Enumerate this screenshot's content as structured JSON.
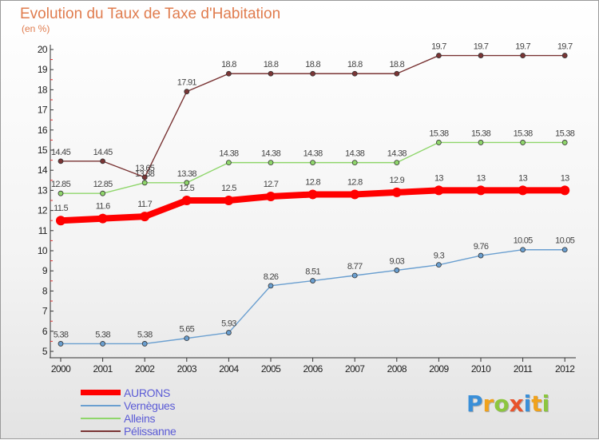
{
  "title": "Evolution du Taux de Taxe d'Habitation",
  "subtitle": "(en %)",
  "chart_data": {
    "type": "line",
    "title": "Evolution du Taux de Taxe d'Habitation",
    "ylabel": "(en %)",
    "xlabel": "",
    "ylim": [
      5,
      20
    ],
    "grid": false,
    "legend_position": "bottom-left",
    "x": [
      "2000",
      "2001",
      "2002",
      "2003",
      "2004",
      "2005",
      "2006",
      "2007",
      "2008",
      "2009",
      "2010",
      "2011",
      "2012"
    ],
    "y_ticks": [
      "5",
      "6",
      "7",
      "8",
      "9",
      "10",
      "11",
      "12",
      "13",
      "14",
      "15",
      "16",
      "17",
      "18",
      "19",
      "20"
    ],
    "series": [
      {
        "name": "AURONS",
        "color": "#ff0000",
        "values": [
          11.5,
          11.6,
          11.7,
          12.5,
          12.5,
          12.7,
          12.8,
          12.8,
          12.9,
          13,
          13,
          13,
          13
        ],
        "labels": [
          "11.5",
          "11.6",
          "11.7",
          "12.5",
          "12.5",
          "12.7",
          "12.8",
          "12.8",
          "12.9",
          "13",
          "13",
          "13",
          "13"
        ]
      },
      {
        "name": "Vernègues",
        "color": "#6a9fd0",
        "values": [
          5.38,
          5.38,
          5.38,
          5.65,
          5.93,
          8.26,
          8.51,
          8.77,
          9.03,
          9.3,
          9.76,
          10.05,
          10.05
        ],
        "labels": [
          "5.38",
          "5.38",
          "5.38",
          "5.65",
          "5.93",
          "8.26",
          "8.51",
          "8.77",
          "9.03",
          "9.3",
          "9.76",
          "10.05",
          "10.05"
        ]
      },
      {
        "name": "Alleins",
        "color": "#8fd66b",
        "values": [
          12.85,
          12.85,
          13.38,
          13.38,
          14.38,
          14.38,
          14.38,
          14.38,
          14.38,
          15.38,
          15.38,
          15.38,
          15.38
        ],
        "labels": [
          "12.85",
          "12.85",
          "13.38",
          "13.38",
          "14.38",
          "14.38",
          "14.38",
          "14.38",
          "14.38",
          "15.38",
          "15.38",
          "15.38",
          "15.38"
        ]
      },
      {
        "name": "Pélissanne",
        "color": "#7a3535",
        "values": [
          14.45,
          14.45,
          13.65,
          17.91,
          18.8,
          18.8,
          18.8,
          18.8,
          18.8,
          19.7,
          19.7,
          19.7,
          19.7
        ],
        "labels": [
          "14.45",
          "14.45",
          "13.65",
          "17.91",
          "18.8",
          "18.8",
          "18.8",
          "18.8",
          "18.8",
          "19.7",
          "19.7",
          "19.7",
          "19.7"
        ]
      }
    ]
  },
  "logo": {
    "letters": [
      "P",
      "r",
      "o",
      "x",
      "i",
      "t",
      "i"
    ],
    "colors": [
      "#3a8fd8",
      "#f0a21c",
      "#8cc63f",
      "#e8542c",
      "#3a8fd8",
      "#f0a21c",
      "#8cc63f"
    ]
  }
}
